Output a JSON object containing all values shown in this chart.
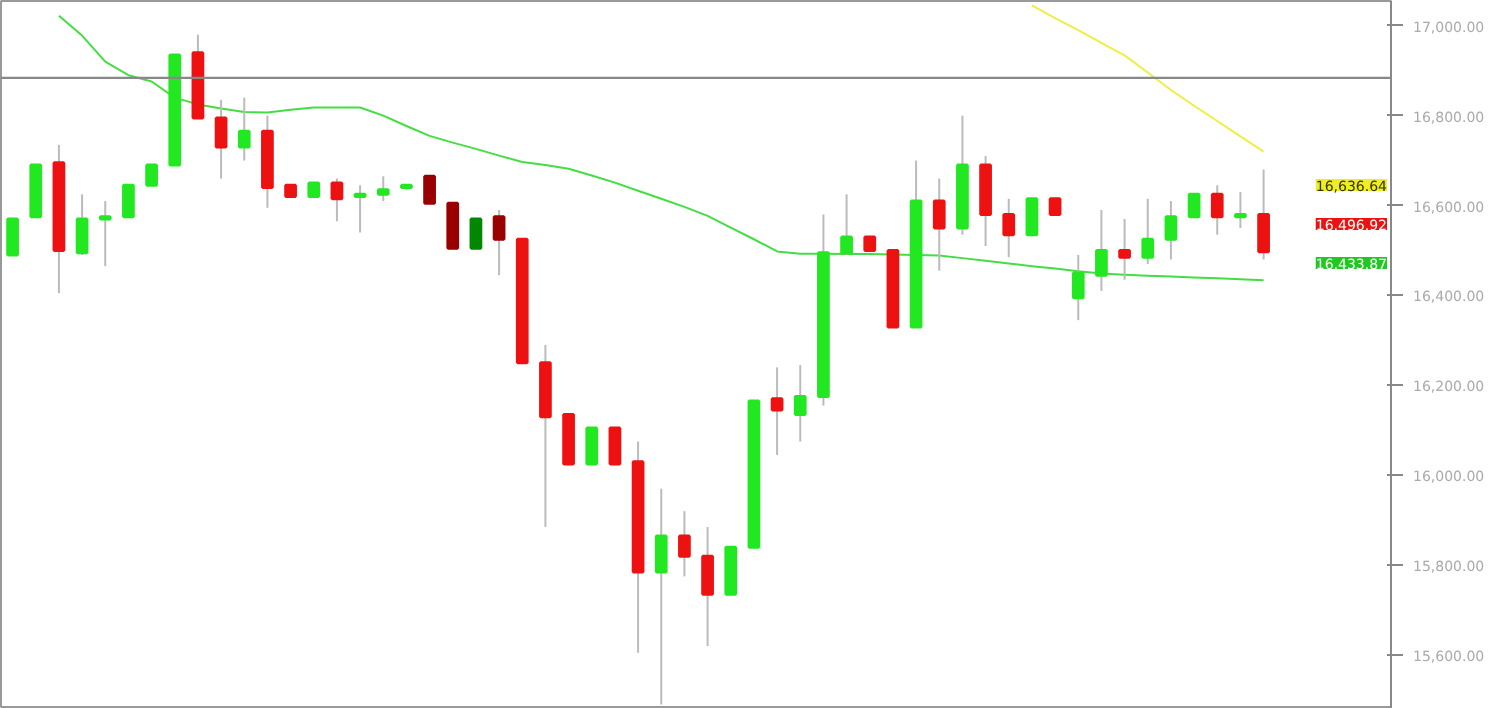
{
  "chart_data": {
    "type": "candlestick",
    "tick_labels": "y",
    "grid": false,
    "categories": [
      null,
      null,
      null,
      null,
      null,
      null,
      null,
      null,
      null,
      null,
      null,
      null,
      null,
      null,
      null,
      null,
      null,
      null,
      null,
      null,
      null,
      null,
      null,
      null,
      null,
      null,
      null,
      null,
      null,
      null,
      null,
      null,
      null,
      null,
      null,
      null,
      null,
      null,
      null,
      null,
      null,
      null,
      null,
      null,
      null,
      null,
      null,
      null,
      null,
      null,
      null,
      null,
      null,
      null,
      null,
      null,
      null,
      null,
      null,
      null
    ],
    "ohlc": [
      [
        16490,
        16570,
        16490,
        16570
      ],
      [
        16575,
        16690,
        16575,
        16690
      ],
      [
        16695,
        16735,
        16405,
        16500
      ],
      [
        16495,
        16625,
        16490,
        16570
      ],
      [
        16570,
        16610,
        16465,
        16575
      ],
      [
        16575,
        16645,
        16575,
        16645
      ],
      [
        16645,
        16690,
        16645,
        16690
      ],
      [
        16690,
        16935,
        16690,
        16935
      ],
      [
        16940,
        16980,
        16795,
        16795
      ],
      [
        16795,
        16835,
        16660,
        16730
      ],
      [
        16730,
        16840,
        16700,
        16765
      ],
      [
        16765,
        16800,
        16595,
        16640
      ],
      [
        16645,
        16645,
        16620,
        16620
      ],
      [
        16620,
        16650,
        16620,
        16650
      ],
      [
        16650,
        16660,
        16565,
        16615
      ],
      [
        16620,
        16645,
        16540,
        16625
      ],
      [
        16625,
        16665,
        16610,
        16635
      ],
      [
        16640,
        16645,
        16635,
        16645
      ],
      [
        16665,
        16665,
        16605,
        16605
      ],
      [
        16605,
        16605,
        16505,
        16505
      ],
      [
        16505,
        16570,
        16505,
        16570
      ],
      [
        16575,
        16590,
        16445,
        16525
      ],
      [
        16525,
        16525,
        16250,
        16250
      ],
      [
        16250,
        16290,
        15885,
        16130
      ],
      [
        16135,
        16135,
        16025,
        16025
      ],
      [
        16025,
        16105,
        16025,
        16105
      ],
      [
        16105,
        16105,
        16025,
        16025
      ],
      [
        16030,
        16075,
        15605,
        15785
      ],
      [
        15785,
        15970,
        15490,
        15865
      ],
      [
        15865,
        15920,
        15775,
        15820
      ],
      [
        15820,
        15885,
        15620,
        15735
      ],
      [
        15735,
        15840,
        15735,
        15840
      ],
      [
        15840,
        16165,
        15840,
        16165
      ],
      [
        16170,
        16240,
        16045,
        16145
      ],
      [
        16135,
        16245,
        16075,
        16175
      ],
      [
        16175,
        16580,
        16155,
        16495
      ],
      [
        16495,
        16625,
        16490,
        16530
      ],
      [
        16530,
        16530,
        16500,
        16500
      ],
      [
        16500,
        16500,
        16330,
        16330
      ],
      [
        16330,
        16700,
        16330,
        16610
      ],
      [
        16610,
        16660,
        16455,
        16550
      ],
      [
        16550,
        16800,
        16535,
        16690
      ],
      [
        16690,
        16710,
        16510,
        16580
      ],
      [
        16580,
        16615,
        16485,
        16535
      ],
      [
        16535,
        16615,
        16535,
        16615
      ],
      [
        16615,
        16615,
        16580,
        16580
      ],
      [
        16395,
        16490,
        16345,
        16450
      ],
      [
        16445,
        16590,
        16410,
        16500
      ],
      [
        16500,
        16570,
        16435,
        16485
      ],
      [
        16485,
        16615,
        16470,
        16525
      ],
      [
        16525,
        16610,
        16480,
        16575
      ],
      [
        16575,
        16625,
        16575,
        16625
      ],
      [
        16625,
        16645,
        16535,
        16575
      ],
      [
        16575,
        16630,
        16550,
        16580
      ],
      [
        16580,
        16680,
        16480,
        16497
      ],
      null,
      null,
      null,
      null,
      null
    ],
    "colors": [
      "#22e822",
      "#22e822",
      "#ee1111",
      "#22e822",
      "#22e822",
      "#22e822",
      "#22e822",
      "#22e822",
      "#ee1111",
      "#ee1111",
      "#22e822",
      "#ee1111",
      "#ee1111",
      "#22e822",
      "#ee1111",
      "#22e822",
      "#22e822",
      "#22e822",
      "#990000",
      "#990000",
      "#008800",
      "#990000",
      "#ee1111",
      "#ee1111",
      "#ee1111",
      "#22e822",
      "#ee1111",
      "#ee1111",
      "#22e822",
      "#ee1111",
      "#ee1111",
      "#22e822",
      "#22e822",
      "#ee1111",
      "#22e822",
      "#22e822",
      "#22e822",
      "#ee1111",
      "#ee1111",
      "#22e822",
      "#ee1111",
      "#22e822",
      "#ee1111",
      "#ee1111",
      "#22e822",
      "#ee1111",
      "#22e822",
      "#22e822",
      "#ee1111",
      "#22e822",
      "#22e822",
      "#22e822",
      "#ee1111",
      "#22e822",
      "#ee1111",
      null,
      null,
      null,
      null,
      null
    ],
    "series": [
      {
        "type": "line",
        "color": "#44dd44",
        "values": [
          null,
          null,
          17022,
          16978,
          16920,
          16890,
          16876,
          16840,
          16825,
          16816,
          16808,
          16807,
          16813,
          16818,
          16818,
          16818,
          16800,
          16777,
          16755,
          16740,
          16726,
          16711,
          16697,
          16690,
          16682,
          16667,
          16651,
          16633,
          16615,
          16597,
          16577,
          16551,
          16525,
          16498,
          16493,
          16493,
          16492,
          16492,
          16491,
          16490,
          16489,
          16483,
          16477,
          16471,
          16465,
          16460,
          16454,
          16449,
          16446,
          16444,
          16442,
          16440,
          16438,
          16436,
          16434,
          null,
          null,
          null,
          null,
          null
        ]
      },
      {
        "type": "line",
        "color": "#eeee44",
        "values": [
          null,
          null,
          null,
          null,
          null,
          null,
          null,
          null,
          null,
          null,
          null,
          null,
          null,
          null,
          null,
          null,
          null,
          null,
          null,
          null,
          null,
          null,
          null,
          null,
          null,
          null,
          null,
          null,
          null,
          null,
          null,
          null,
          null,
          null,
          null,
          null,
          null,
          null,
          null,
          null,
          null,
          null,
          null,
          null,
          17045,
          17017,
          16990,
          16962,
          16934,
          16896,
          16857,
          16822,
          16788,
          16754,
          16720,
          null,
          null,
          null,
          null,
          null
        ]
      }
    ],
    "ref_lines": [
      {
        "axis": "y",
        "value": 16884,
        "color": "#888888"
      }
    ],
    "ylim": [
      15480,
      17055
    ],
    "yticks": [
      {
        "value": 15600,
        "label": "15,600.00"
      },
      {
        "value": 15800,
        "label": "15,800.00"
      },
      {
        "value": 16000,
        "label": "16,000.00"
      },
      {
        "value": 16200,
        "label": "16,200.00"
      },
      {
        "value": 16400,
        "label": "16,400.00"
      },
      {
        "value": 16600,
        "label": "16,600.00"
      },
      {
        "value": 16800,
        "label": "16,800.00"
      },
      {
        "value": 17000,
        "label": "17,000.00"
      }
    ],
    "annotations": [
      "16,636.64",
      "16,496.92",
      "16,433.87"
    ]
  }
}
